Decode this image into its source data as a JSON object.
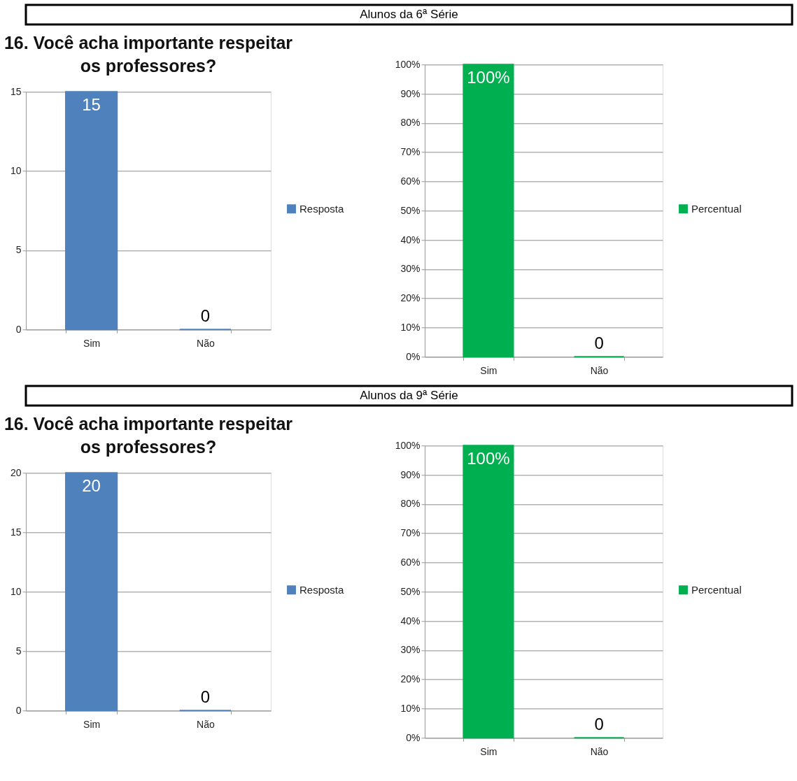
{
  "chart_data": [
    {
      "type": "other",
      "title": "Alunos da 6ª Série"
    },
    {
      "type": "bar",
      "title": "16. Você acha importante respeitar os professores?",
      "categories": [
        "Sim",
        "Não"
      ],
      "series": [
        {
          "name": "Resposta",
          "color": "#4f81bd",
          "values": [
            15,
            0
          ]
        }
      ],
      "ylim": [
        0,
        15
      ],
      "yticks": [
        0,
        5,
        10,
        15
      ],
      "grid": "y",
      "legend": "right",
      "data_labels": true
    },
    {
      "type": "bar",
      "categories": [
        "Sim",
        "Não"
      ],
      "series": [
        {
          "name": "Percentual",
          "color": "#00b050",
          "values": [
            100,
            0
          ],
          "value_labels": [
            "100%",
            "0"
          ]
        }
      ],
      "ylim": [
        0,
        100
      ],
      "yticks": [
        {
          "value": 0,
          "label": "0%"
        },
        {
          "value": 10,
          "label": "10%"
        },
        {
          "value": 20,
          "label": "20%"
        },
        {
          "value": 30,
          "label": "30%"
        },
        {
          "value": 40,
          "label": "40%"
        },
        {
          "value": 50,
          "label": "50%"
        },
        {
          "value": 60,
          "label": "60%"
        },
        {
          "value": 70,
          "label": "70%"
        },
        {
          "value": 80,
          "label": "80%"
        },
        {
          "value": 90,
          "label": "90%"
        },
        {
          "value": 100,
          "label": "100%"
        }
      ],
      "grid": "y",
      "legend": "right"
    },
    {
      "type": "other",
      "title": "Alunos da 9ª Série"
    },
    {
      "type": "bar",
      "title": "16. Você acha importante respeitar os professores?",
      "categories": [
        "Sim",
        "Não"
      ],
      "series": [
        {
          "name": "Resposta",
          "color": "#4f81bd",
          "values": [
            20,
            0
          ]
        }
      ],
      "ylim": [
        0,
        20
      ],
      "yticks": [
        0,
        5,
        10,
        15,
        20
      ],
      "grid": "y",
      "legend": "right",
      "data_labels": true
    },
    {
      "type": "bar",
      "categories": [
        "Sim",
        "Não"
      ],
      "series": [
        {
          "name": "Percentual",
          "color": "#00b050",
          "values": [
            100,
            0
          ],
          "value_labels": [
            "100%",
            "0"
          ]
        }
      ],
      "ylim": [
        0,
        100
      ],
      "yticks": [
        {
          "value": 0,
          "label": "0%"
        },
        {
          "value": 10,
          "label": "10%"
        },
        {
          "value": 20,
          "label": "20%"
        },
        {
          "value": 30,
          "label": "30%"
        },
        {
          "value": 40,
          "label": "40%"
        },
        {
          "value": 50,
          "label": "50%"
        },
        {
          "value": 60,
          "label": "60%"
        },
        {
          "value": 70,
          "label": "70%"
        },
        {
          "value": 80,
          "label": "80%"
        },
        {
          "value": 90,
          "label": "90%"
        },
        {
          "value": 100,
          "label": "100%"
        }
      ],
      "grid": "y",
      "legend": "right"
    }
  ]
}
